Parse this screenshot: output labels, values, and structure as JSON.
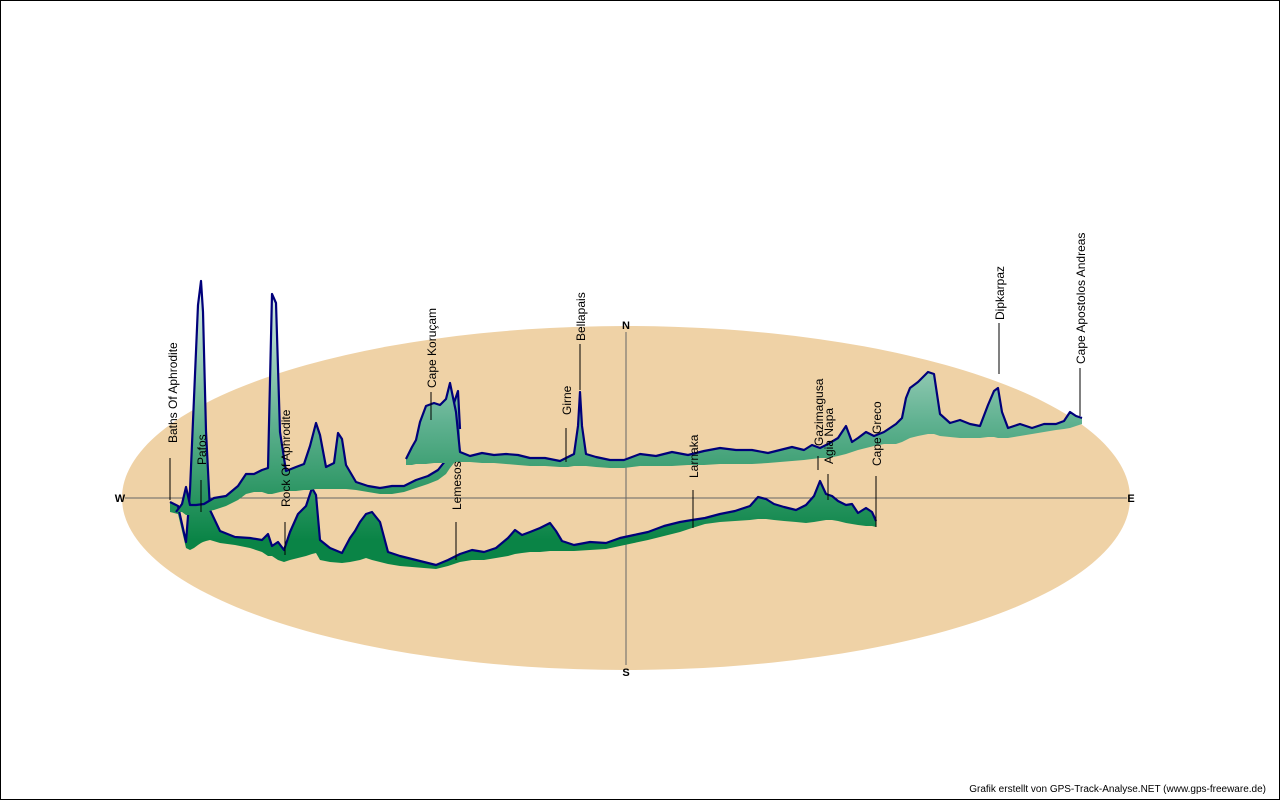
{
  "chart_data": {
    "type": "area",
    "compass": {
      "north": "N",
      "south": "S",
      "east": "E",
      "west": "W"
    },
    "colors": {
      "plane": "#efd2a6",
      "fill_top": "#dfeee8",
      "fill_bottom": "#0f8a4a",
      "profile_line": "#00007a",
      "axis": "#555555"
    },
    "places": [
      {
        "name": "Baths Of Aphrodite"
      },
      {
        "name": "Pafos"
      },
      {
        "name": "Rock Of Aphrodite"
      },
      {
        "name": "Lemesos"
      },
      {
        "name": "Cape Koruçam"
      },
      {
        "name": "Girne"
      },
      {
        "name": "Bellapais"
      },
      {
        "name": "Larnaka"
      },
      {
        "name": "Gazimagusa"
      },
      {
        "name": "Agia Napa"
      },
      {
        "name": "Cape Greco"
      },
      {
        "name": "Dipkarpaz"
      },
      {
        "name": "Cape Apostolos Andreas"
      }
    ]
  },
  "footer": {
    "credit": "Grafik erstellt von GPS-Track-Analyse.NET (www.gps-freeware.de)"
  }
}
